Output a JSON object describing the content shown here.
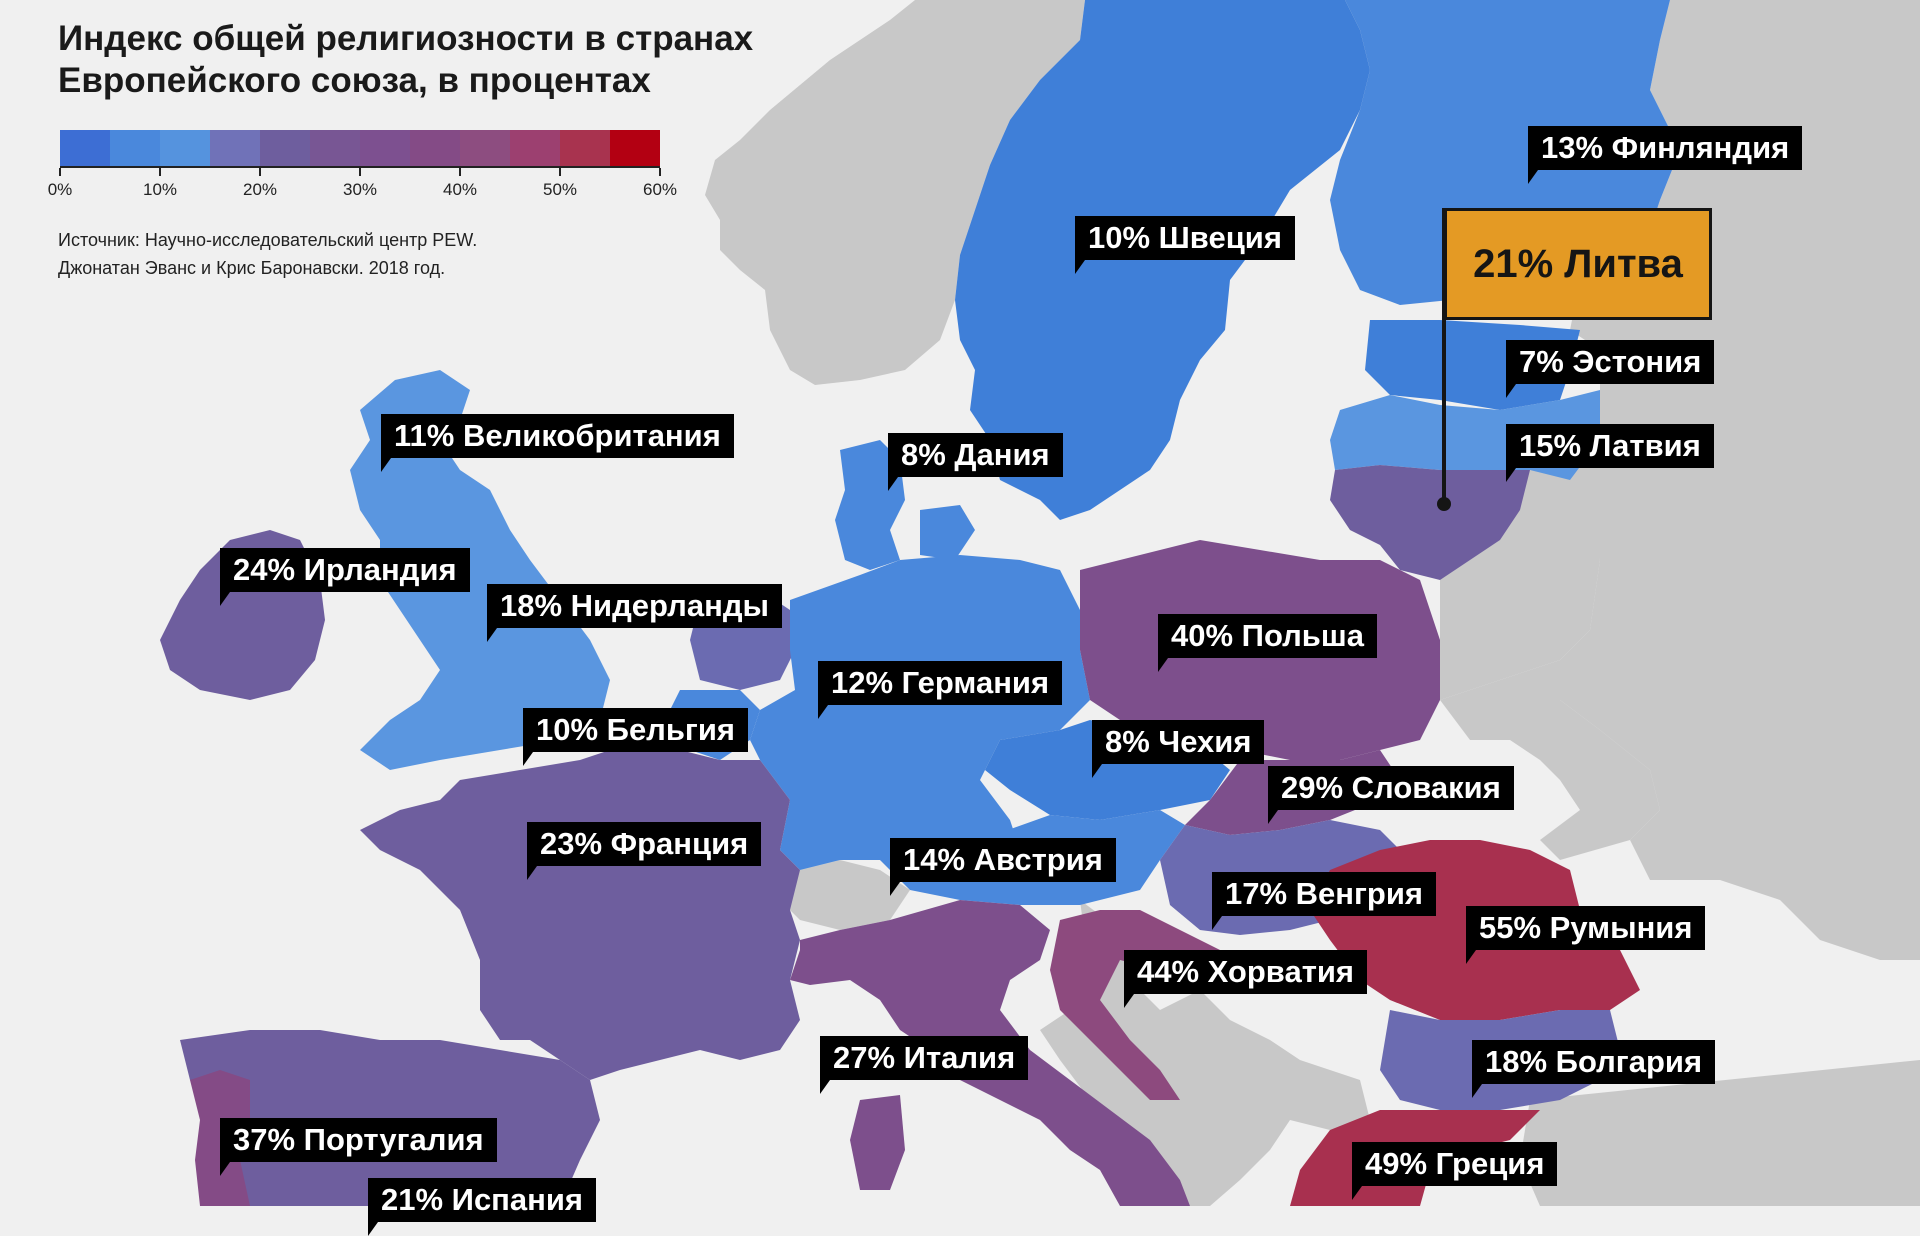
{
  "title": {
    "line1": "Индекс общей религиозности в странах",
    "line2": "Европейского союза, в процентах"
  },
  "legend": {
    "scale_colors": [
      "#3d6ed4",
      "#4a88dc",
      "#5593de",
      "#7072b8",
      "#6e5e9e",
      "#785694",
      "#7d5090",
      "#844b86",
      "#8d4d80",
      "#9c4070",
      "#a8334f",
      "#b30012"
    ],
    "tick_labels": [
      "0%",
      "10%",
      "20%",
      "30%",
      "40%",
      "50%",
      "60%"
    ]
  },
  "source": {
    "line1": "Источник: Научно-исследовательский центр PEW.",
    "line2": "Джонатан Эванс и Крис Баронавски. 2018 год."
  },
  "colors": {
    "sea": "#f0f0f0",
    "non_eu": "#c8c8c8",
    "blue_dark": "#3f7fd8",
    "blue_mid": "#4a88dc",
    "blue_light": "#5a96e0",
    "purple_light": "#6b6bb1",
    "purple": "#6e5e9e",
    "purple_dark": "#7d4f8c",
    "magenta": "#8d4a7e",
    "red": "#a8304f",
    "featured": "#e49a24"
  },
  "countries": [
    {
      "key": "finland",
      "label": "13% Финляндия"
    },
    {
      "key": "sweden",
      "label": "10% Швеция"
    },
    {
      "key": "lithuania",
      "label": "21% Литва"
    },
    {
      "key": "estonia",
      "label": "7% Эстония"
    },
    {
      "key": "latvia",
      "label": "15% Латвия"
    },
    {
      "key": "uk",
      "label": "11% Великобритания"
    },
    {
      "key": "denmark",
      "label": "8% Дания"
    },
    {
      "key": "ireland",
      "label": "24% Ирландия"
    },
    {
      "key": "netherlands",
      "label": "18% Нидерланды"
    },
    {
      "key": "poland",
      "label": "40% Польша"
    },
    {
      "key": "germany",
      "label": "12% Германия"
    },
    {
      "key": "belgium",
      "label": "10% Бельгия"
    },
    {
      "key": "czechia",
      "label": "8% Чехия"
    },
    {
      "key": "slovakia",
      "label": "29% Словакия"
    },
    {
      "key": "france",
      "label": "23% Франция"
    },
    {
      "key": "austria",
      "label": "14% Австрия"
    },
    {
      "key": "hungary",
      "label": "17% Венгрия"
    },
    {
      "key": "romania",
      "label": "55% Румыния"
    },
    {
      "key": "croatia",
      "label": "44% Хорватия"
    },
    {
      "key": "italy",
      "label": "27% Италия"
    },
    {
      "key": "bulgaria",
      "label": "18% Болгария"
    },
    {
      "key": "portugal",
      "label": "37% Португалия"
    },
    {
      "key": "greece",
      "label": "49% Греция"
    },
    {
      "key": "spain",
      "label": "21% Испания"
    }
  ]
}
